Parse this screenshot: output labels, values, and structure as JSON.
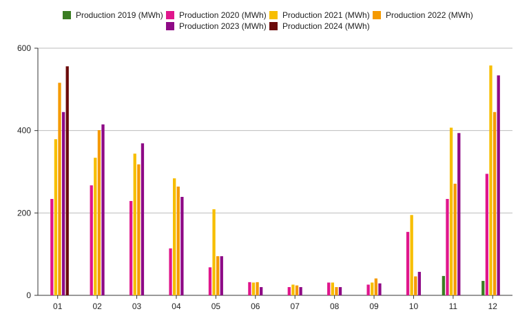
{
  "chart_data": {
    "type": "bar",
    "title": "",
    "xlabel": "",
    "ylabel": "",
    "ylim": [
      0,
      600
    ],
    "yticks": [
      0,
      200,
      400,
      600
    ],
    "grid": "horizontal",
    "legend_position": "top",
    "categories": [
      "01",
      "02",
      "03",
      "04",
      "05",
      "06",
      "07",
      "08",
      "09",
      "10",
      "11",
      "12"
    ],
    "series": [
      {
        "name": "Production 2019 (MWh)",
        "color": "#3a7d22",
        "values": [
          null,
          null,
          null,
          null,
          null,
          null,
          null,
          null,
          null,
          null,
          47,
          35
        ]
      },
      {
        "name": "Production 2020 (MWh)",
        "color": "#e0168c",
        "values": [
          234,
          267,
          229,
          114,
          68,
          32,
          20,
          31,
          26,
          154,
          234,
          295
        ]
      },
      {
        "name": "Production 2021 (MWh)",
        "color": "#f7be00",
        "values": [
          379,
          334,
          344,
          284,
          209,
          31,
          26,
          31,
          31,
          195,
          407,
          558
        ]
      },
      {
        "name": "Production 2022 (MWh)",
        "color": "#f59a00",
        "values": [
          516,
          401,
          318,
          264,
          95,
          32,
          24,
          20,
          41,
          46,
          271,
          445
        ]
      },
      {
        "name": "Production 2023 (MWh)",
        "color": "#8e0a86",
        "values": [
          445,
          415,
          369,
          239,
          95,
          20,
          20,
          20,
          29,
          57,
          394,
          534
        ]
      },
      {
        "name": "Production 2024 (MWh)",
        "color": "#6b0a0a",
        "values": [
          556,
          null,
          null,
          null,
          null,
          null,
          null,
          null,
          null,
          null,
          null,
          null
        ]
      }
    ]
  }
}
